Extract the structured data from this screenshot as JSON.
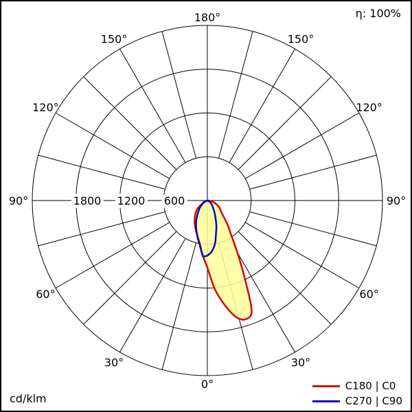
{
  "page": {
    "background": "#ffffff",
    "border_color": "#000000"
  },
  "chart_data": {
    "type": "polar",
    "kind": "luminous-intensity-distribution",
    "unit": "cd/klm",
    "efficiency_label": "η: 100%",
    "angle_convention": "gamma 0° at bottom (nadir), 180° at top; negative gamma = left half (C180/C270), positive = right half (C0/C90); intensity in cd/klm",
    "grid": {
      "ray_step_deg": 15,
      "label_step_deg": 30,
      "circle_values": [
        600,
        1200,
        1800,
        2400
      ],
      "radial_tick_labels": [
        "1800",
        "1200",
        "600"
      ],
      "radial_max": 2400,
      "line_color": "#000000"
    },
    "angle_labels": [
      "0°",
      "30°",
      "60°",
      "90°",
      "120°",
      "150°",
      "180°"
    ],
    "series": [
      {
        "name": "C180 | C0",
        "color": "#dd0000",
        "fill": "#ffff99",
        "fill_opacity": 0.85,
        "points_deg_cdklm": [
          [
            -90,
            0
          ],
          [
            -75,
            30
          ],
          [
            -60,
            80
          ],
          [
            -50,
            180
          ],
          [
            -40,
            260
          ],
          [
            -30,
            350
          ],
          [
            -20,
            450
          ],
          [
            -10,
            600
          ],
          [
            -5,
            750
          ],
          [
            0,
            920
          ],
          [
            5,
            1230
          ],
          [
            10,
            1480
          ],
          [
            14,
            1650
          ],
          [
            18,
            1710
          ],
          [
            22,
            1620
          ],
          [
            26,
            1150
          ],
          [
            30,
            820
          ],
          [
            35,
            560
          ],
          [
            40,
            430
          ],
          [
            50,
            250
          ],
          [
            60,
            190
          ],
          [
            75,
            90
          ],
          [
            90,
            10
          ]
        ]
      },
      {
        "name": "C270 | C90",
        "color": "#0000cc",
        "fill": "none",
        "fill_opacity": 0,
        "points_deg_cdklm": [
          [
            -90,
            0
          ],
          [
            -60,
            60
          ],
          [
            -45,
            150
          ],
          [
            -30,
            300
          ],
          [
            -22,
            410
          ],
          [
            -15,
            520
          ],
          [
            -10,
            610
          ],
          [
            -5,
            755
          ],
          [
            -3,
            765
          ],
          [
            0,
            755
          ],
          [
            5,
            700
          ],
          [
            10,
            600
          ],
          [
            15,
            460
          ],
          [
            20,
            360
          ],
          [
            30,
            200
          ],
          [
            45,
            90
          ],
          [
            60,
            40
          ],
          [
            90,
            0
          ]
        ]
      }
    ],
    "legend": [
      {
        "label": "C180 | C0",
        "color": "#dd0000"
      },
      {
        "label": "C270 | C90",
        "color": "#0000cc"
      }
    ]
  }
}
